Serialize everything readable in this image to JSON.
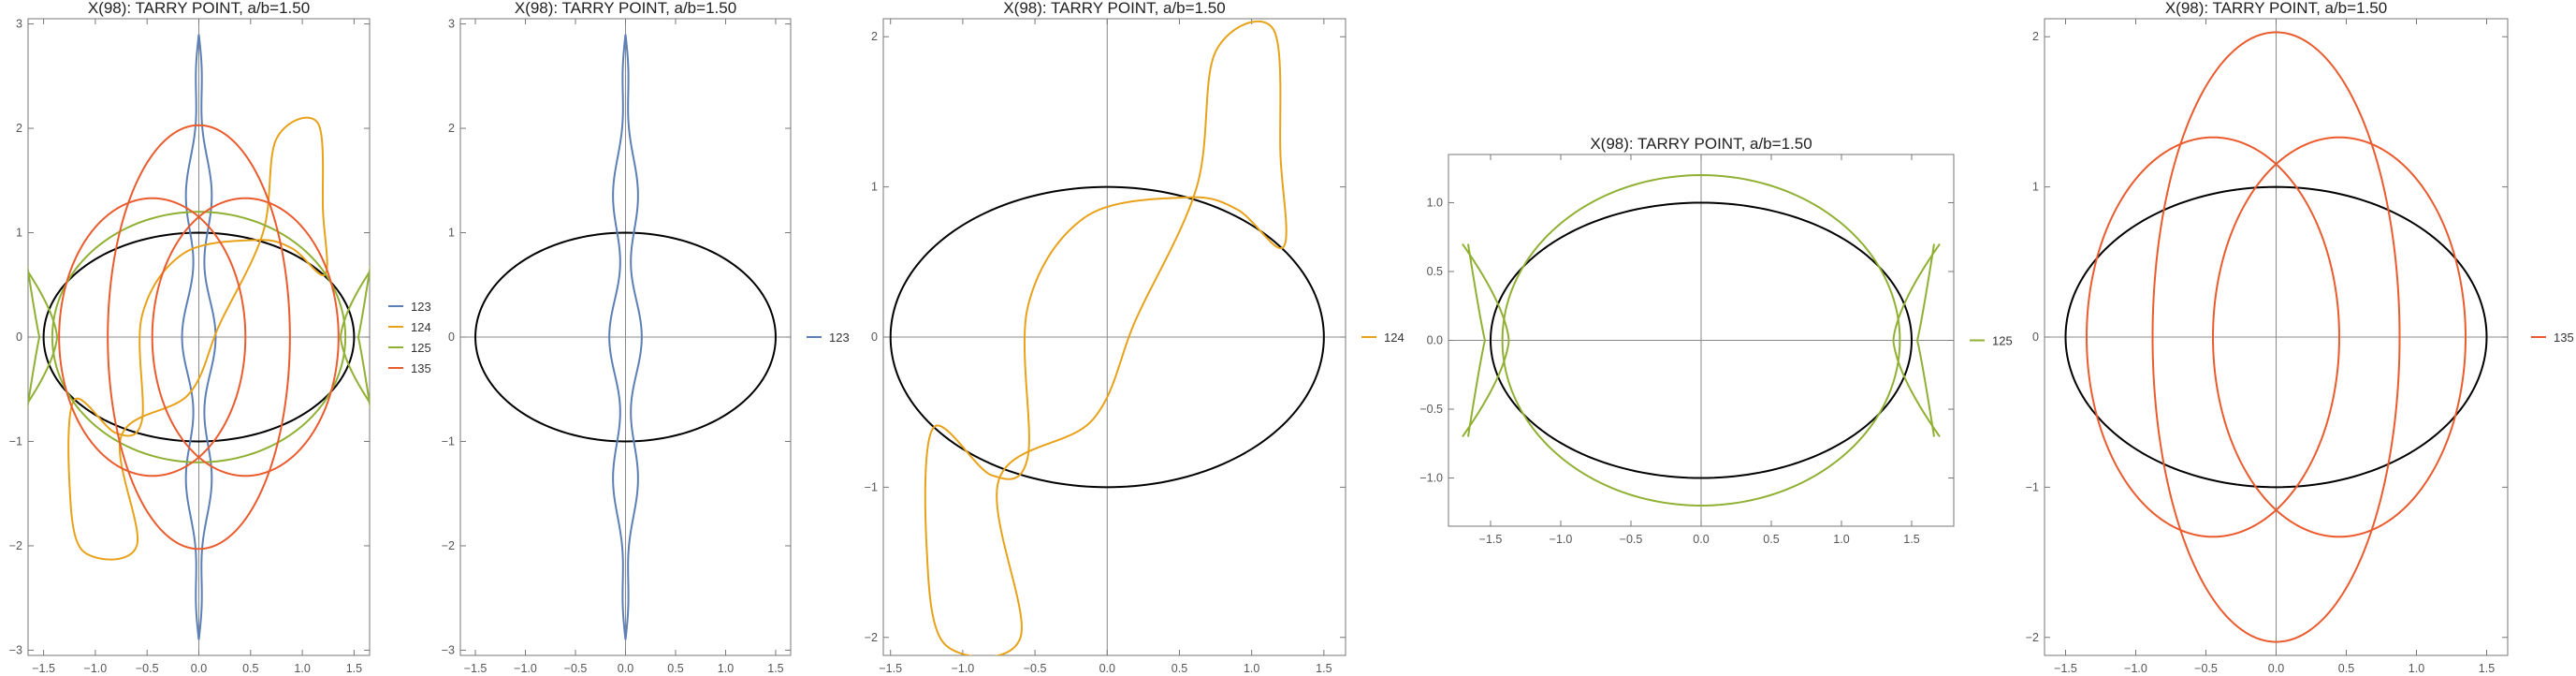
{
  "chart_data": [
    {
      "type": "line",
      "title": "X(98): TARRY POINT, a/b=1.50",
      "xlim": [
        -1.65,
        1.65
      ],
      "ylim": [
        -3.05,
        3.05
      ],
      "xticks": [
        -1.5,
        -1.0,
        -0.5,
        0,
        0.5,
        1.0,
        1.5
      ],
      "xtick_labels": [
        "−1.5",
        "−1.0",
        "−0.5",
        "0.0",
        "0.5",
        "1.0",
        "1.5"
      ],
      "yticks": [
        -3,
        -2,
        -1,
        0,
        1,
        2,
        3
      ],
      "ytick_labels": [
        "−3",
        "−2",
        "−1",
        "0",
        "1",
        "2",
        "3"
      ],
      "ellipse": {
        "a": 1.5,
        "b": 1.0,
        "color": "#000000"
      },
      "legend_position": "right",
      "series": [
        {
          "name": "123",
          "shape": "lens",
          "color": "#5b7fb6",
          "params": {
            "h": 2.9,
            "w": 0.09
          }
        },
        {
          "name": "124",
          "shape": "s-curve",
          "color": "#e8a21a",
          "params": {
            "R": 1.2,
            "ox": 0.95,
            "oy": 1.15,
            "end_x": 1.15,
            "end_y": 2.05
          }
        },
        {
          "name": "125",
          "shape": "double-lobe",
          "color": "#8fb033",
          "params": {
            "R": 1.2,
            "lobe_x": 1.62,
            "lobe_y": 0.7
          }
        },
        {
          "name": "135",
          "shape": "three-ellipses",
          "color": "#ea5b2e",
          "params": {
            "vertical_ry": 2.03,
            "vertical_rx": 0.88,
            "side_r": 1.33,
            "side_dx": 0.45
          }
        }
      ]
    },
    {
      "type": "line",
      "title": "X(98): TARRY POINT, a/b=1.50",
      "xlim": [
        -1.65,
        1.65
      ],
      "ylim": [
        -3.05,
        3.05
      ],
      "xticks": [
        -1.5,
        -1.0,
        -0.5,
        0,
        0.5,
        1.0,
        1.5
      ],
      "xtick_labels": [
        "−1.5",
        "−1.0",
        "−0.5",
        "0.0",
        "0.5",
        "1.0",
        "1.5"
      ],
      "yticks": [
        -3,
        -2,
        -1,
        0,
        1,
        2,
        3
      ],
      "ytick_labels": [
        "−3",
        "−2",
        "−1",
        "0",
        "1",
        "2",
        "3"
      ],
      "ellipse": {
        "a": 1.5,
        "b": 1.0,
        "color": "#000000"
      },
      "legend_position": "right",
      "series": [
        {
          "name": "123",
          "shape": "lens",
          "color": "#5b7fb6",
          "params": {
            "h": 2.9,
            "w": 0.09
          }
        }
      ]
    },
    {
      "type": "line",
      "title": "X(98): TARRY POINT, a/b=1.50",
      "xlim": [
        -1.55,
        1.65
      ],
      "ylim": [
        -2.12,
        2.12
      ],
      "xticks": [
        -1.5,
        -1.0,
        -0.5,
        0,
        0.5,
        1.0,
        1.5
      ],
      "xtick_labels": [
        "−1.5",
        "−1.0",
        "−0.5",
        "0.0",
        "0.5",
        "1.0",
        "1.5"
      ],
      "yticks": [
        -2,
        -1,
        0,
        1,
        2
      ],
      "ytick_labels": [
        "−2",
        "−1",
        "0",
        "1",
        "2"
      ],
      "ellipse": {
        "a": 1.5,
        "b": 1.0,
        "color": "#000000"
      },
      "legend_position": "right",
      "series": [
        {
          "name": "124",
          "shape": "s-curve",
          "color": "#e8a21a",
          "params": {
            "R": 1.2,
            "ox": 0.95,
            "oy": 1.15,
            "end_x": 1.15,
            "end_y": 2.05
          }
        }
      ]
    },
    {
      "type": "line",
      "title": "X(98): TARRY POINT, a/b=1.50",
      "xlim": [
        -1.8,
        1.8
      ],
      "ylim": [
        -1.35,
        1.35
      ],
      "xticks": [
        -1.5,
        -1.0,
        -0.5,
        0,
        0.5,
        1.0,
        1.5
      ],
      "xtick_labels": [
        "−1.5",
        "−1.0",
        "−0.5",
        "0.0",
        "0.5",
        "1.0",
        "1.5"
      ],
      "yticks": [
        -1.0,
        -0.5,
        0,
        0.5,
        1.0
      ],
      "ytick_labels": [
        "−1.0",
        "−0.5",
        "0.0",
        "0.5",
        "1.0"
      ],
      "ellipse": {
        "a": 1.5,
        "b": 1.0,
        "color": "#000000"
      },
      "legend_position": "right",
      "series": [
        {
          "name": "125",
          "shape": "double-lobe",
          "color": "#8fb033",
          "params": {
            "R": 1.2,
            "lobe_x": 1.62,
            "lobe_y": 0.7
          }
        }
      ]
    },
    {
      "type": "line",
      "title": "X(98): TARRY POINT, a/b=1.50",
      "xlim": [
        -1.65,
        1.65
      ],
      "ylim": [
        -2.12,
        2.12
      ],
      "xticks": [
        -1.5,
        -1.0,
        -0.5,
        0,
        0.5,
        1.0,
        1.5
      ],
      "xtick_labels": [
        "−1.5",
        "−1.0",
        "−0.5",
        "0.0",
        "0.5",
        "1.0",
        "1.5"
      ],
      "yticks": [
        -2,
        -1,
        0,
        1,
        2
      ],
      "ytick_labels": [
        "−2",
        "−1",
        "0",
        "1",
        "2"
      ],
      "ellipse": {
        "a": 1.5,
        "b": 1.0,
        "color": "#000000"
      },
      "legend_position": "right",
      "series": [
        {
          "name": "135",
          "shape": "three-ellipses",
          "color": "#ea5b2e",
          "params": {
            "vertical_ry": 2.03,
            "vertical_rx": 0.88,
            "side_r": 1.33,
            "side_dx": 0.45
          }
        }
      ]
    }
  ]
}
